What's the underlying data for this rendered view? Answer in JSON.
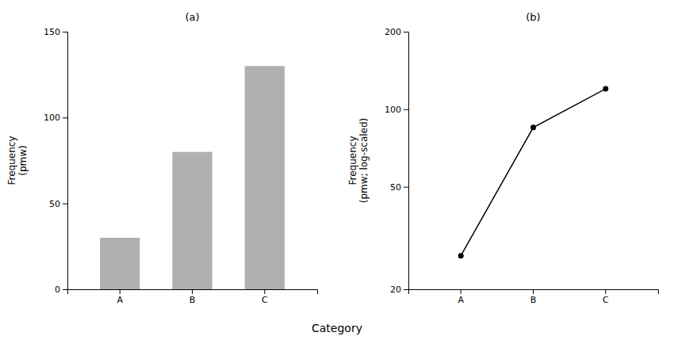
{
  "chart_data": [
    {
      "type": "bar",
      "title": "(a)",
      "categories": [
        "A",
        "B",
        "C"
      ],
      "values": [
        30,
        80,
        130
      ],
      "color": "#b0b0b0",
      "ylim": [
        0,
        150
      ],
      "yticks": [
        0,
        50,
        100,
        150
      ],
      "ylabel": "Frequency\n(pmw)",
      "xlabel": "Category"
    },
    {
      "type": "line",
      "title": "(b)",
      "categories": [
        "A",
        "B",
        "C"
      ],
      "values": [
        27,
        85,
        120
      ],
      "color": "#000000",
      "marker": "circle",
      "log": "y",
      "ylim": [
        20,
        200
      ],
      "yticks": [
        20,
        50,
        100,
        200
      ],
      "ylabel": "Frequency\n(pmw; log-scaled)"
    }
  ]
}
